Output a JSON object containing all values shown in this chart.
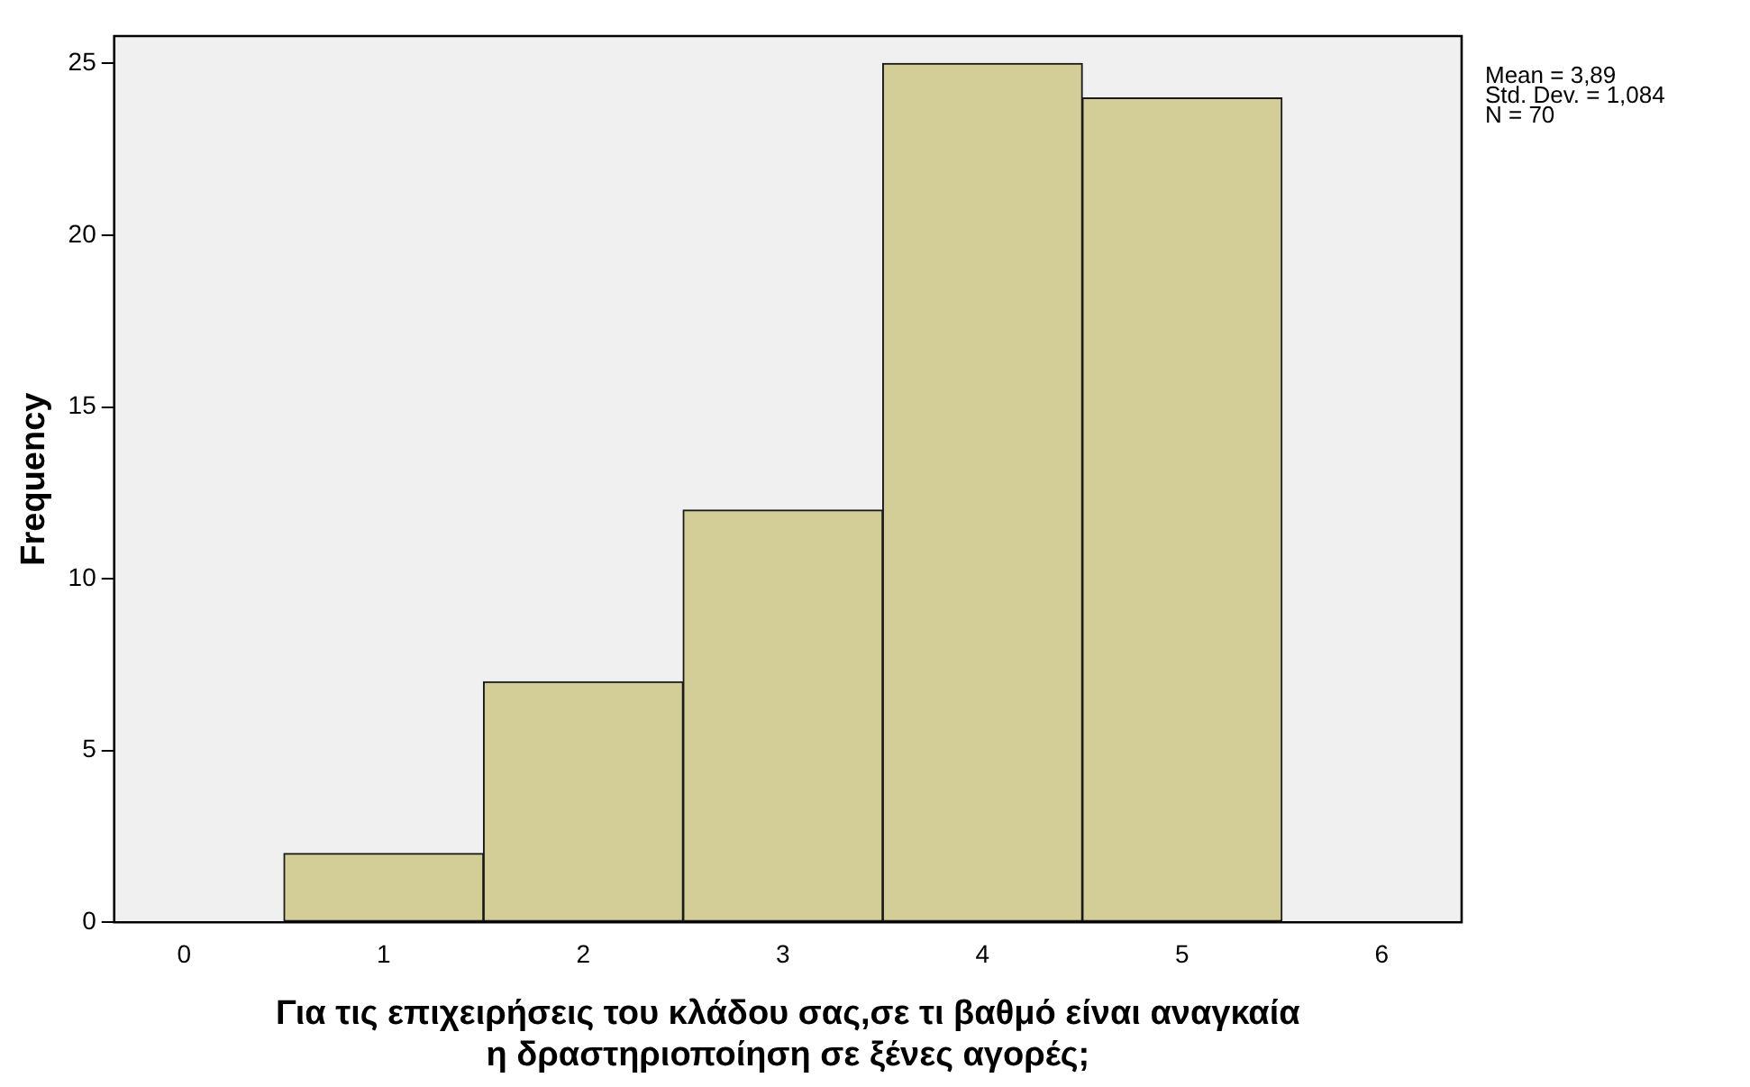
{
  "chart_data": {
    "type": "histogram",
    "xlabel": "Για τις επιχειρήσεις του κλάδου σας,σε τι βαθμό είναι αναγκαία η δραστηριοποίηση σε ξένες αγορές;",
    "ylabel": "Frequency",
    "bins": [
      0.5,
      1.5,
      2.5,
      3.5,
      4.5,
      5.5
    ],
    "values": [
      2,
      7,
      12,
      25,
      24
    ],
    "color": "#d3ce97",
    "xlim": [
      -0.35,
      6.4
    ],
    "xticks": [
      0,
      1,
      2,
      3,
      4,
      5,
      6
    ],
    "ylim": [
      0,
      25.8
    ],
    "yticks": [
      0,
      5,
      10,
      15,
      20,
      25
    ],
    "annotations": [
      "Mean = 3,89",
      "Std. Dev. = 1,084",
      "N = 70"
    ],
    "grid": false,
    "legend": false
  }
}
